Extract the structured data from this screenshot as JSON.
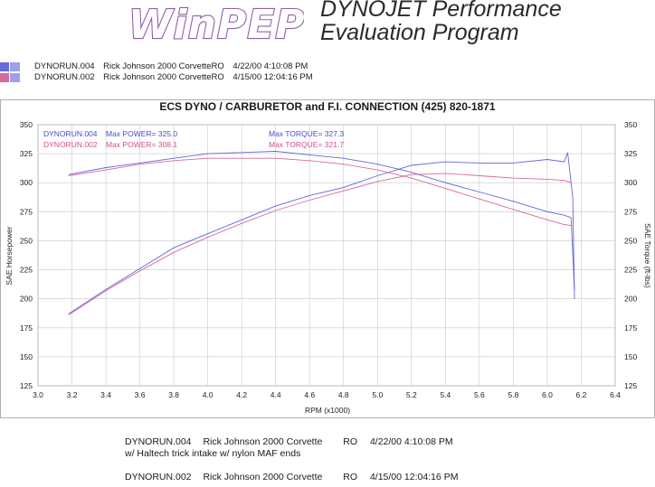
{
  "header": {
    "logo_text": "WinPEP",
    "tagline_line1": "DYNOJET Performance",
    "tagline_line2": "Evaluation Program"
  },
  "runs": [
    {
      "file": "DYNORUN.004",
      "name": "Rick Johnson 2000 CorvetteRO",
      "date": "4/22/00 4:10:08 PM",
      "swatch_color": "#6a6ae0",
      "swatch_color2": "#a0a0e8"
    },
    {
      "file": "DYNORUN.002",
      "name": "Rick Johnson 2000 CorvetteRO",
      "date": "4/15/00 12:04:16 PM",
      "swatch_color": "#d86a9a",
      "swatch_color2": "#a0a0e8"
    }
  ],
  "colors": {
    "run004": "#4a4ad0",
    "run002": "#d0508a",
    "grid": "#c8c8c8",
    "frame_border": "#9a9a9a"
  },
  "notes": [
    {
      "file": "DYNORUN.004",
      "name": "Rick Johnson 2000 Corvette",
      "ro": "RO",
      "date": "4/22/00 4:10:08 PM",
      "detail": "w/ Haltech trick intake w/ nylon MAF ends"
    },
    {
      "file": "DYNORUN.002",
      "name": "Rick Johnson 2000 Corvette",
      "ro": "RO",
      "date": "4/15/00 12:04:16 PM",
      "detail": ""
    }
  ],
  "chart_data": {
    "type": "line",
    "title": "ECS DYNO / CARBURETOR and F.I. CONNECTION    (425) 820-1871",
    "xlabel": "RPM (x1000)",
    "ylabel": "SAE Horsepower",
    "y2label": "SAE Torque (ft-lbs)",
    "xlim": [
      3.0,
      6.4
    ],
    "ylim": [
      125,
      350
    ],
    "y2lim": [
      125,
      350
    ],
    "x_ticks": [
      "3.0",
      "3.2",
      "3.4",
      "3.6",
      "3.8",
      "4.0",
      "4.2",
      "4.4",
      "4.6",
      "4.8",
      "5.0",
      "5.2",
      "5.4",
      "5.6",
      "5.8",
      "6.0",
      "6.2",
      "6.4"
    ],
    "y_ticks": [
      "125",
      "150",
      "175",
      "200",
      "225",
      "250",
      "275",
      "300",
      "325",
      "350"
    ],
    "grid": true,
    "legend": [
      {
        "run": "DYNORUN.004",
        "power": "Max POWER= 325.0",
        "torque": "Max TORQUE= 327.3"
      },
      {
        "run": "DYNORUN.002",
        "power": "Max POWER= 308.1",
        "torque": "Max TORQUE= 321.7"
      }
    ],
    "series": [
      {
        "name": "DYNORUN.004",
        "quantity": "power",
        "x": [
          3.18,
          3.4,
          3.6,
          3.8,
          4.0,
          4.2,
          4.4,
          4.6,
          4.8,
          5.0,
          5.2,
          5.4,
          5.6,
          5.8,
          6.0,
          6.1,
          6.12,
          6.15,
          6.16
        ],
        "values": [
          187,
          208,
          226,
          244,
          256,
          268,
          280,
          289,
          296,
          306,
          315,
          318,
          317,
          317,
          320,
          318,
          326,
          287,
          200
        ]
      },
      {
        "name": "DYNORUN.004",
        "quantity": "torque",
        "x": [
          3.18,
          3.4,
          3.6,
          3.8,
          4.0,
          4.2,
          4.4,
          4.6,
          4.8,
          5.0,
          5.2,
          5.4,
          5.6,
          5.8,
          6.0,
          6.1,
          6.14,
          6.16
        ],
        "values": [
          307,
          313,
          317,
          321,
          325,
          326,
          327,
          324,
          321,
          316,
          309,
          300,
          292,
          284,
          275,
          272,
          270,
          208
        ]
      },
      {
        "name": "DYNORUN.002",
        "quantity": "power",
        "x": [
          3.18,
          3.4,
          3.6,
          3.8,
          4.0,
          4.2,
          4.4,
          4.6,
          4.8,
          5.0,
          5.2,
          5.4,
          5.6,
          5.8,
          6.0,
          6.1,
          6.14
        ],
        "values": [
          186,
          207,
          224,
          240,
          253,
          265,
          276,
          285,
          293,
          301,
          307,
          308,
          306,
          304,
          303,
          302,
          300
        ]
      },
      {
        "name": "DYNORUN.002",
        "quantity": "torque",
        "x": [
          3.18,
          3.4,
          3.6,
          3.8,
          4.0,
          4.2,
          4.4,
          4.6,
          4.8,
          5.0,
          5.2,
          5.4,
          5.6,
          5.8,
          6.0,
          6.1,
          6.14
        ],
        "values": [
          306,
          311,
          316,
          319,
          321,
          321,
          321,
          319,
          316,
          311,
          304,
          295,
          286,
          277,
          268,
          264,
          263
        ]
      }
    ]
  }
}
